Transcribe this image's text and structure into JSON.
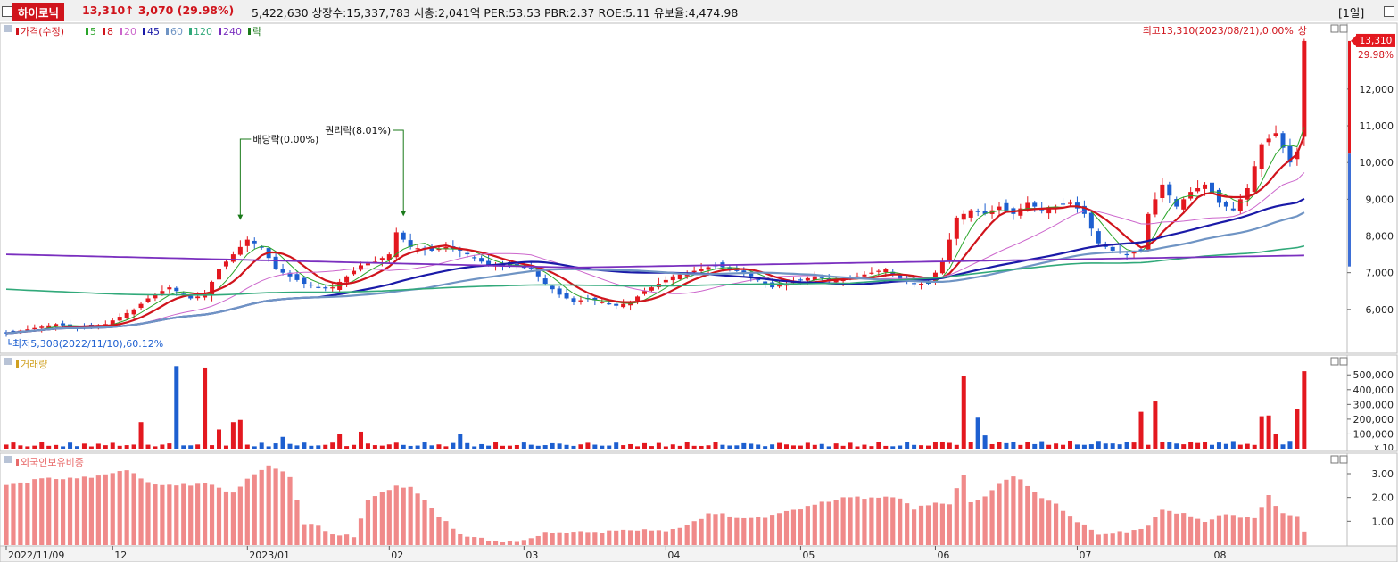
{
  "header": {
    "stock_name": "하이로닉",
    "price": "13,310",
    "change_arrow": "↑",
    "change": "3,070",
    "change_pct": "(29.98%)",
    "stats": "5,422,630  상장수:15,337,783 시총:2,041억 PER:53.53 PBR:2.37 ROE:5.11 유보율:4,474.98",
    "period": "[1일]"
  },
  "legend_price": [
    {
      "label": "가격(수정)",
      "color": "#d0141c"
    },
    {
      "label": "5",
      "color": "#2aa52a"
    },
    {
      "label": "8",
      "color": "#d0141c"
    },
    {
      "label": "20",
      "color": "#cc66cc"
    },
    {
      "label": "45",
      "color": "#1a1aa8"
    },
    {
      "label": "60",
      "color": "#6f94c4"
    },
    {
      "label": "120",
      "color": "#31a97a"
    },
    {
      "label": "240",
      "color": "#7a2fbf"
    },
    {
      "label": "락",
      "color": "#1a7a1a"
    }
  ],
  "legend_volume": "거래량",
  "legend_foreign": "외국인보유비중",
  "annotations": {
    "high": "최고13,310(2023/08/21),0.00%",
    "upper_limit_badge": "상",
    "low": "최저5,308(2022/11/10),60.12%",
    "dividend": "배당락(0.00%)",
    "rights": "권리락(8.01%)",
    "price_tag": "13,310",
    "price_tag_pct": "29.98%",
    "vol_unit": "x 10"
  },
  "chart_data": [
    {
      "type": "candlestick",
      "title": "가격(수정)",
      "ylim": [
        5000,
        13600
      ],
      "y_ticks": [
        "6,000",
        "7,000",
        "8,000",
        "9,000",
        "10,000",
        "11,000",
        "12,000"
      ],
      "y_tick_values": [
        6000,
        7000,
        8000,
        9000,
        10000,
        11000,
        12000
      ],
      "x_labels": [
        "2022/11/09",
        "12",
        "2023/01",
        "02",
        "03",
        "04",
        "05",
        "06",
        "07",
        "08"
      ],
      "x_label_index": [
        0,
        15,
        34,
        54,
        73,
        93,
        112,
        131,
        151,
        170
      ],
      "close_anchors": [
        [
          0,
          5350
        ],
        [
          7,
          5600
        ],
        [
          10,
          5500
        ],
        [
          14,
          5600
        ],
        [
          18,
          6000
        ],
        [
          20,
          6300
        ],
        [
          23,
          6600
        ],
        [
          26,
          6300
        ],
        [
          28,
          6400
        ],
        [
          30,
          7100
        ],
        [
          32,
          7500
        ],
        [
          34,
          7900
        ],
        [
          36,
          7700
        ],
        [
          38,
          7100
        ],
        [
          40,
          6900
        ],
        [
          42,
          6700
        ],
        [
          44,
          6600
        ],
        [
          46,
          6600
        ],
        [
          48,
          6900
        ],
        [
          50,
          7200
        ],
        [
          52,
          7300
        ],
        [
          54,
          7500
        ],
        [
          55,
          8100
        ],
        [
          57,
          7700
        ],
        [
          60,
          7600
        ],
        [
          62,
          7700
        ],
        [
          64,
          7600
        ],
        [
          66,
          7400
        ],
        [
          68,
          7200
        ],
        [
          70,
          7200
        ],
        [
          72,
          7200
        ],
        [
          74,
          7100
        ],
        [
          76,
          6700
        ],
        [
          78,
          6400
        ],
        [
          80,
          6200
        ],
        [
          82,
          6300
        ],
        [
          84,
          6200
        ],
        [
          86,
          6100
        ],
        [
          88,
          6200
        ],
        [
          90,
          6500
        ],
        [
          92,
          6700
        ],
        [
          94,
          6900
        ],
        [
          96,
          7000
        ],
        [
          98,
          7100
        ],
        [
          100,
          7200
        ],
        [
          102,
          7100
        ],
        [
          104,
          7000
        ],
        [
          106,
          6800
        ],
        [
          108,
          6600
        ],
        [
          110,
          6700
        ],
        [
          112,
          6800
        ],
        [
          114,
          6900
        ],
        [
          116,
          6800
        ],
        [
          118,
          6800
        ],
        [
          120,
          6900
        ],
        [
          122,
          7000
        ],
        [
          124,
          7100
        ],
        [
          126,
          6800
        ],
        [
          128,
          6700
        ],
        [
          130,
          6700
        ],
        [
          132,
          7300
        ],
        [
          134,
          8500
        ],
        [
          136,
          8700
        ],
        [
          138,
          8600
        ],
        [
          140,
          8800
        ],
        [
          142,
          8600
        ],
        [
          144,
          8900
        ],
        [
          146,
          8700
        ],
        [
          148,
          8800
        ],
        [
          150,
          8900
        ],
        [
          152,
          8600
        ],
        [
          154,
          7800
        ],
        [
          156,
          7600
        ],
        [
          158,
          7500
        ],
        [
          160,
          7600
        ],
        [
          161,
          8600
        ],
        [
          163,
          9400
        ],
        [
          165,
          8800
        ],
        [
          167,
          9200
        ],
        [
          169,
          9400
        ],
        [
          171,
          8900
        ],
        [
          173,
          8700
        ],
        [
          175,
          9300
        ],
        [
          177,
          10500
        ],
        [
          179,
          10800
        ],
        [
          181,
          10000
        ],
        [
          182,
          10300
        ],
        [
          183,
          13310
        ]
      ],
      "volume_ylim": [
        0,
        580000
      ],
      "volume_ticks": [
        "100,000",
        "200,000",
        "300,000",
        "400,000",
        "500,000"
      ],
      "volume_tick_values": [
        100000,
        200000,
        300000,
        400000,
        500000
      ],
      "volume_spikes": [
        [
          19,
          180000
        ],
        [
          24,
          560000
        ],
        [
          28,
          550000
        ],
        [
          30,
          130000
        ],
        [
          32,
          180000
        ],
        [
          33,
          195000
        ],
        [
          39,
          80000
        ],
        [
          47,
          100000
        ],
        [
          50,
          115000
        ],
        [
          64,
          100000
        ],
        [
          135,
          490000
        ],
        [
          137,
          210000
        ],
        [
          138,
          90000
        ],
        [
          160,
          250000
        ],
        [
          162,
          320000
        ],
        [
          177,
          220000
        ],
        [
          178,
          225000
        ],
        [
          179,
          100000
        ],
        [
          182,
          270000
        ],
        [
          183,
          525000
        ]
      ],
      "foreign_ylim": [
        0,
        3.6
      ],
      "foreign_ticks": [
        "1.00",
        "2.00",
        "3.00"
      ],
      "foreign_tick_values": [
        1.0,
        2.0,
        3.0
      ],
      "foreign_anchors": [
        [
          0,
          2.5
        ],
        [
          5,
          2.8
        ],
        [
          10,
          2.8
        ],
        [
          15,
          3.0
        ],
        [
          17,
          3.2
        ],
        [
          20,
          2.6
        ],
        [
          24,
          2.5
        ],
        [
          28,
          2.6
        ],
        [
          32,
          2.2
        ],
        [
          35,
          3.0
        ],
        [
          37,
          3.35
        ],
        [
          40,
          2.9
        ],
        [
          42,
          0.9
        ],
        [
          44,
          0.8
        ],
        [
          46,
          0.45
        ],
        [
          49,
          0.35
        ],
        [
          51,
          1.9
        ],
        [
          53,
          2.2
        ],
        [
          55,
          2.5
        ],
        [
          57,
          2.4
        ],
        [
          59,
          1.9
        ],
        [
          61,
          1.2
        ],
        [
          64,
          0.45
        ],
        [
          68,
          0.2
        ],
        [
          72,
          0.12
        ],
        [
          76,
          0.5
        ],
        [
          80,
          0.55
        ],
        [
          84,
          0.55
        ],
        [
          88,
          0.65
        ],
        [
          92,
          0.6
        ],
        [
          95,
          0.7
        ],
        [
          99,
          1.3
        ],
        [
          101,
          1.3
        ],
        [
          104,
          1.1
        ],
        [
          107,
          1.2
        ],
        [
          110,
          1.4
        ],
        [
          114,
          1.7
        ],
        [
          118,
          2.0
        ],
        [
          122,
          2.0
        ],
        [
          126,
          2.0
        ],
        [
          128,
          1.5
        ],
        [
          131,
          1.8
        ],
        [
          133,
          1.7
        ],
        [
          135,
          3.0
        ],
        [
          136,
          1.8
        ],
        [
          138,
          2.0
        ],
        [
          140,
          2.6
        ],
        [
          142,
          2.9
        ],
        [
          144,
          2.5
        ],
        [
          146,
          2.0
        ],
        [
          148,
          1.7
        ],
        [
          151,
          1.0
        ],
        [
          154,
          0.45
        ],
        [
          158,
          0.55
        ],
        [
          161,
          0.8
        ],
        [
          163,
          1.5
        ],
        [
          166,
          1.3
        ],
        [
          169,
          1.0
        ],
        [
          172,
          1.3
        ],
        [
          176,
          1.1
        ],
        [
          178,
          2.1
        ],
        [
          180,
          1.3
        ],
        [
          182,
          1.2
        ],
        [
          183,
          0.6
        ]
      ]
    }
  ]
}
